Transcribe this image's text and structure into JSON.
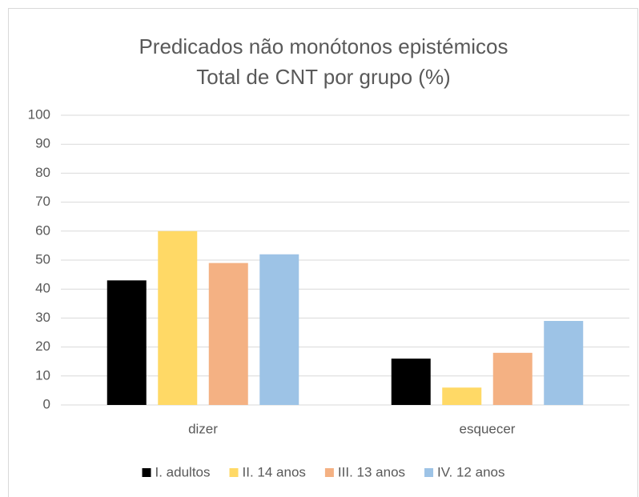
{
  "chart_data": {
    "type": "bar",
    "title": "Predicados não monótonos epistémicos",
    "subtitle": "Total de CNT por grupo (%)",
    "categories": [
      "dizer",
      "esquecer"
    ],
    "series": [
      {
        "name": "I. adultos",
        "color": "#000000",
        "values": [
          43,
          16
        ]
      },
      {
        "name": "II. 14 anos",
        "color": "#ffd966",
        "values": [
          60,
          6
        ]
      },
      {
        "name": "III. 13 anos",
        "color": "#f4b183",
        "values": [
          49,
          18
        ]
      },
      {
        "name": "IV. 12 anos",
        "color": "#9dc3e6",
        "values": [
          52,
          29
        ]
      }
    ],
    "ylim": [
      0,
      100
    ],
    "yticks": [
      0,
      10,
      20,
      30,
      40,
      50,
      60,
      70,
      80,
      90,
      100
    ],
    "grid": true,
    "legend": "bottom"
  }
}
